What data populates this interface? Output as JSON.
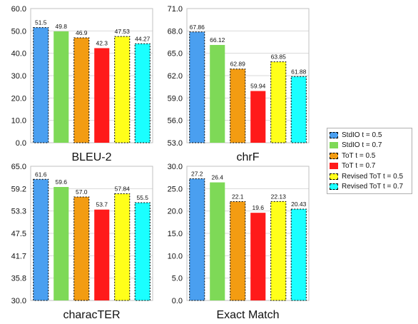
{
  "chart_data": [
    {
      "type": "bar",
      "title": "BLEU-2",
      "ylim": [
        0,
        60
      ],
      "yticks": [
        "0.0",
        "10.0",
        "20.0",
        "30.0",
        "40.0",
        "50.0",
        "60.0"
      ],
      "values": [
        51.5,
        49.8,
        46.9,
        42.3,
        47.53,
        44.27
      ],
      "value_labels": [
        "51.5",
        "49.8",
        "46.9",
        "42.3",
        "47.53",
        "44.27"
      ]
    },
    {
      "type": "bar",
      "title": "chrF",
      "ylim": [
        53,
        71
      ],
      "yticks": [
        "53.0",
        "56.0",
        "59.0",
        "62.0",
        "65.0",
        "68.0",
        "71.0"
      ],
      "values": [
        67.86,
        66.12,
        62.89,
        59.94,
        63.85,
        61.88
      ],
      "value_labels": [
        "67.86",
        "66.12",
        "62.89",
        "59.94",
        "63.85",
        "61.88"
      ]
    },
    {
      "type": "bar",
      "title": "characTER",
      "ylim": [
        30,
        65
      ],
      "yticks": [
        "30.0",
        "35.8",
        "41.7",
        "47.5",
        "53.3",
        "59.2",
        "65.0"
      ],
      "values": [
        61.6,
        59.6,
        57.0,
        53.7,
        57.84,
        55.5
      ],
      "value_labels": [
        "61.6",
        "59.6",
        "57.0",
        "53.7",
        "57.84",
        "55.5"
      ]
    },
    {
      "type": "bar",
      "title": "Exact Match",
      "ylim": [
        0,
        30
      ],
      "yticks": [
        "0.0",
        "5.0",
        "10.0",
        "15.0",
        "20.0",
        "25.0",
        "30.0"
      ],
      "values": [
        27.2,
        26.4,
        22.1,
        19.6,
        22.13,
        20.43
      ],
      "value_labels": [
        "27.2",
        "26.4",
        "22.1",
        "19.6",
        "22.13",
        "20.43"
      ]
    }
  ],
  "series": [
    {
      "name": "StdIO t = 0.5",
      "color": "#4a9ff0",
      "dashed": true
    },
    {
      "name": "StdIO t = 0.7",
      "color": "#7ed957",
      "dashed": false
    },
    {
      "name": "ToT t = 0.5",
      "color": "#f39c12",
      "dashed": true
    },
    {
      "name": "ToT t = 0.7",
      "color": "#ff1a1a",
      "dashed": false
    },
    {
      "name": "Revised ToT t = 0.5",
      "color": "#ffff1a",
      "dashed": true
    },
    {
      "name": "Revised ToT t = 0.7",
      "color": "#1affff",
      "dashed": true
    }
  ],
  "legend_position": "right"
}
